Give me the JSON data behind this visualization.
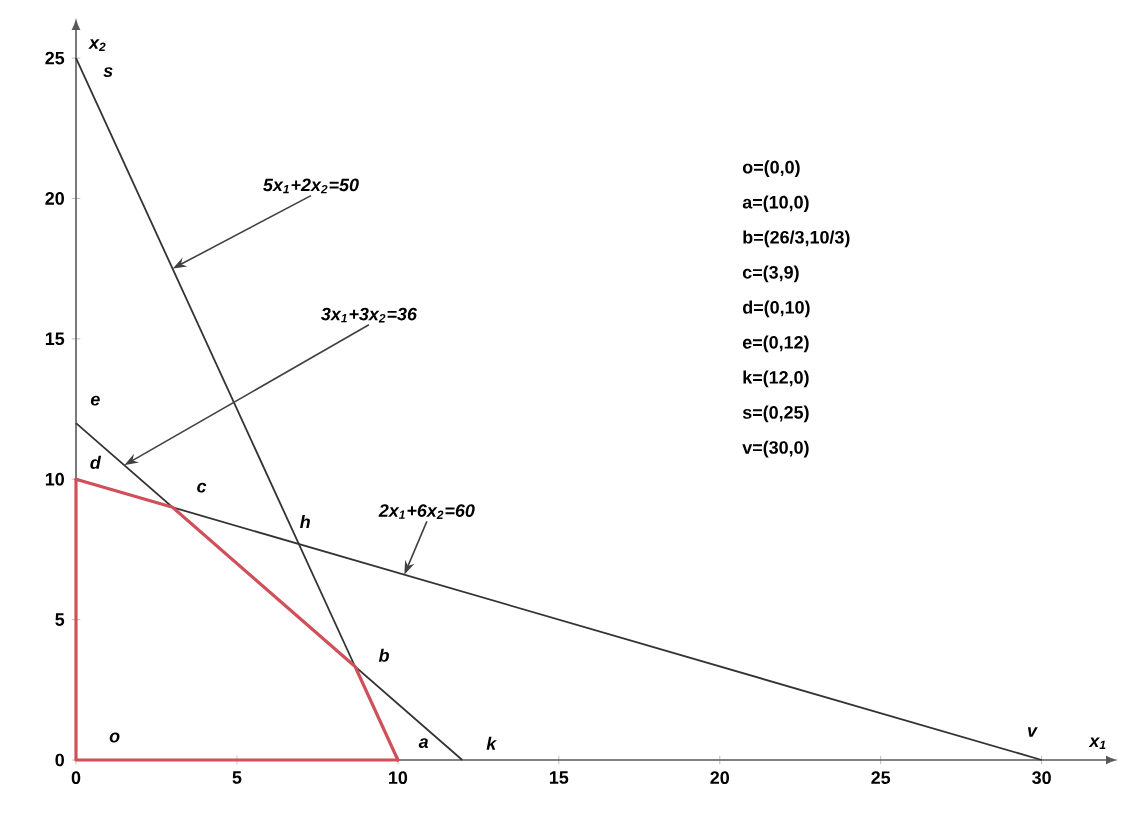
{
  "chart_data": {
    "type": "line",
    "xlabel": "x$_{1}$",
    "ylabel": "x$_{2}$",
    "xlim": [
      0,
      32
    ],
    "ylim": [
      0,
      26
    ],
    "xticks": [
      0,
      5,
      10,
      15,
      20,
      25,
      30
    ],
    "yticks": [
      0,
      5,
      10,
      15,
      20,
      25
    ],
    "series": [
      {
        "color": "#333333",
        "x": [
          0,
          10
        ],
        "values": [
          25,
          0
        ]
      },
      {
        "color": "#333333",
        "x": [
          0,
          12
        ],
        "values": [
          12,
          0
        ]
      },
      {
        "color": "#333333",
        "x": [
          0,
          30
        ],
        "values": [
          10,
          0
        ]
      },
      {
        "color": "#d0505a",
        "x": [
          0,
          0,
          10
        ],
        "values": [
          10,
          0,
          0
        ]
      },
      {
        "color": "#d0505a",
        "x": [
          0,
          3,
          8.67,
          10
        ],
        "values": [
          10,
          9,
          3.33,
          0
        ]
      }
    ],
    "annotations": [
      {
        "text": "5x$_{1}$+2x$_{2}$=50",
        "x": 3,
        "y": 17.5
      },
      {
        "text": "3x$_{1}$+3x$_{2}$=36",
        "x": 1.5,
        "y": 10.5
      },
      {
        "text": "2x$_{1}$+6x$_{2}$=60",
        "x": 10.2,
        "y": 6.6
      },
      {
        "text": "o",
        "x": 0,
        "y": 0
      },
      {
        "text": "a",
        "x": 10,
        "y": 0
      },
      {
        "text": "b",
        "x": 8.67,
        "y": 3.33
      },
      {
        "text": "c",
        "x": 3,
        "y": 9
      },
      {
        "text": "d",
        "x": 0,
        "y": 10
      },
      {
        "text": "e",
        "x": 0,
        "y": 12
      },
      {
        "text": "k",
        "x": 12,
        "y": 0
      },
      {
        "text": "s",
        "x": 0,
        "y": 25
      },
      {
        "text": "v",
        "x": 30,
        "y": 0
      },
      {
        "text": "h",
        "x": 6.92,
        "y": 7.69
      },
      "o=(0,0)",
      "a=(10,0)",
      "b=(26/3,10/3)",
      "c=(3,9)",
      "d=(0,10)",
      "e=(0,12)",
      "k=(12,0)",
      "s=(0,25)",
      "v=(30,0)"
    ]
  }
}
